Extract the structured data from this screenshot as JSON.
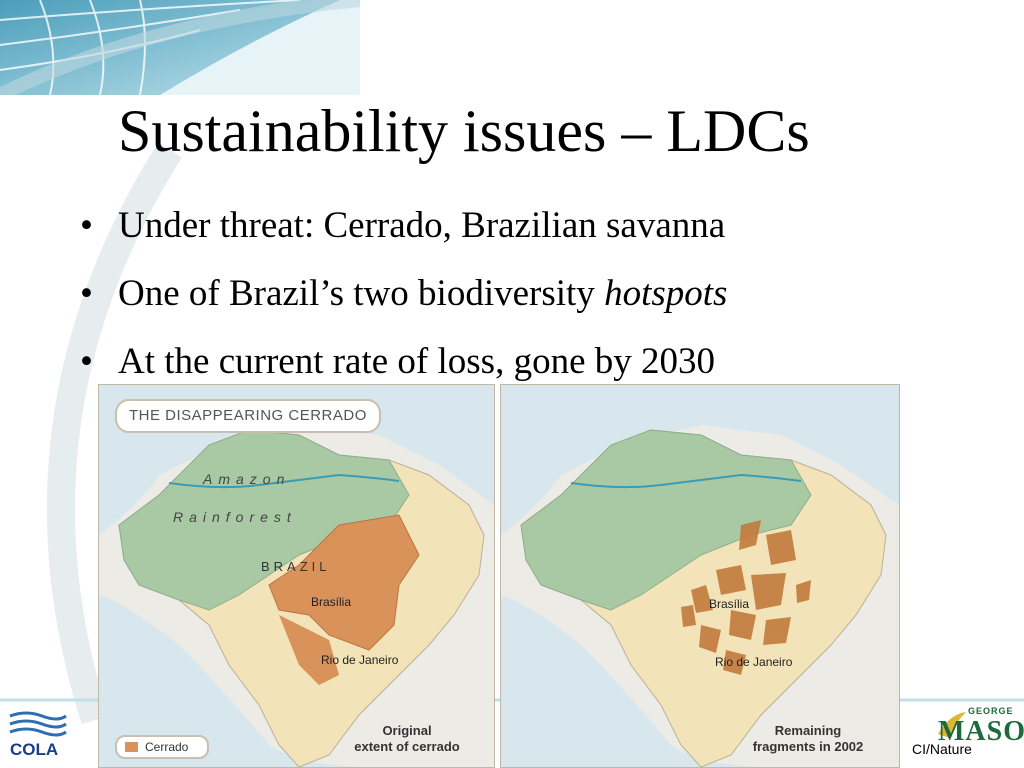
{
  "slide": {
    "title": "Sustainability issues – LDCs",
    "bullets": [
      {
        "text": "Under threat: Cerrado, Brazilian savanna"
      },
      {
        "text": "One of Brazil’s two biodiversity ",
        "italic": "hotspots"
      },
      {
        "text": "At the current rate of loss, gone by 2030"
      }
    ],
    "credit": "CI/Nature"
  },
  "figure": {
    "title": "THE DISAPPEARING CERRADO",
    "labels": {
      "amazon": "Amazon",
      "rainforest": "Rainforest",
      "brazil": "BRAZIL",
      "brasilia": "Brasília",
      "rio": "Rio de Janeiro"
    },
    "left_caption": [
      "Original",
      "extent of cerrado"
    ],
    "right_caption": [
      "Remaining",
      "fragments in 2002"
    ],
    "legend": "Cerrado",
    "colors": {
      "cerrado": "#d9925a",
      "rainforest": "#a9c9a4",
      "land": "#f3e3b8",
      "ocean": "#cfe3ea",
      "river": "#3a9bb5"
    }
  },
  "logos": {
    "left": "COLA",
    "right_small": "GEORGE",
    "right_big": "MASON"
  }
}
